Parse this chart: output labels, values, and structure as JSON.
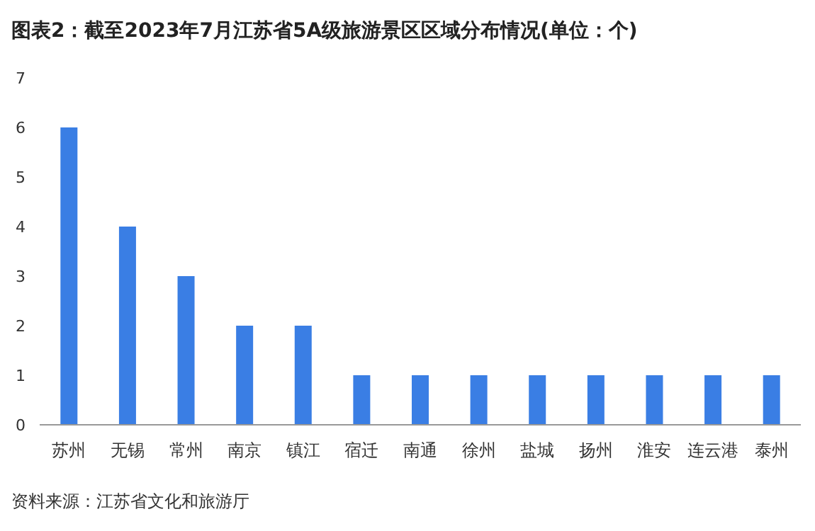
{
  "chart_data": {
    "type": "bar",
    "title": "图表2：截至2023年7月江苏省5A级旅游景区区域分布情况(单位：个)",
    "categories": [
      "苏州",
      "无锡",
      "常州",
      "南京",
      "镇江",
      "宿迁",
      "南通",
      "徐州",
      "盐城",
      "扬州",
      "淮安",
      "连云港",
      "泰州"
    ],
    "values": [
      6,
      4,
      3,
      2,
      2,
      1,
      1,
      1,
      1,
      1,
      1,
      1,
      1
    ],
    "color": "#3a7ee4",
    "ylim": [
      0,
      7
    ],
    "yticks": [
      0,
      1,
      2,
      3,
      4,
      5,
      6,
      7
    ],
    "grid": false,
    "annotations": [
      "资料来源：江苏省文化和旅游厅"
    ]
  }
}
